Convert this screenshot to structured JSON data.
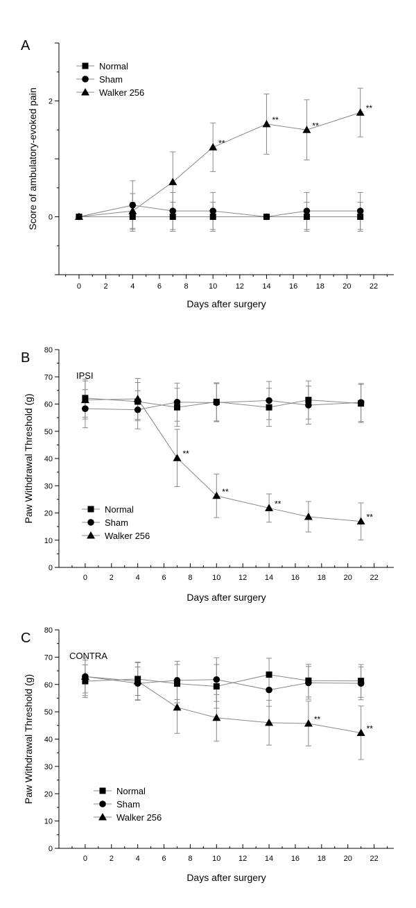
{
  "chart_data": [
    {
      "type": "line",
      "panel_label": "A",
      "title": "",
      "xlabel": "Days after surgery",
      "ylabel": "Score of ambulatory-evoked pain",
      "xlim": [
        -1.5,
        23.5
      ],
      "ylim": [
        -1,
        3
      ],
      "x_ticks": [
        0,
        2,
        4,
        6,
        8,
        10,
        12,
        14,
        16,
        18,
        20,
        22
      ],
      "x_tick_labels": [
        "0",
        "2",
        "4",
        "6",
        "8",
        "10",
        "12",
        "14",
        "16",
        "18",
        "20",
        "22"
      ],
      "y_ticks": [
        0,
        2
      ],
      "y_tick_labels": [
        "0",
        "2"
      ],
      "grid": false,
      "legend_position": "top-left",
      "annotation_text": "",
      "series": [
        {
          "name": "Normal",
          "marker": "square",
          "x": [
            0,
            4,
            7,
            10,
            14,
            17,
            21
          ],
          "y": [
            0,
            0,
            0,
            0,
            0,
            0,
            0
          ],
          "err": [
            0,
            0.25,
            0.25,
            0.25,
            0,
            0.25,
            0.25
          ],
          "sig": [
            "",
            "",
            "",
            "",
            "",
            "",
            ""
          ]
        },
        {
          "name": "Sham",
          "marker": "circle",
          "x": [
            0,
            4,
            7,
            10,
            14,
            17,
            21
          ],
          "y": [
            0,
            0.2,
            0.1,
            0.1,
            0,
            0.1,
            0.1
          ],
          "err": [
            0,
            0.42,
            0.32,
            0.32,
            0,
            0.32,
            0.32
          ],
          "sig": [
            "",
            "",
            "",
            "",
            "",
            "",
            ""
          ]
        },
        {
          "name": "Walker 256",
          "marker": "triangle",
          "x": [
            0,
            4,
            7,
            10,
            14,
            17,
            21
          ],
          "y": [
            0,
            0.1,
            0.6,
            1.2,
            1.6,
            1.5,
            1.8
          ],
          "err": [
            0,
            0.3,
            0.52,
            0.42,
            0.52,
            0.52,
            0.42
          ],
          "sig": [
            "",
            "",
            "",
            "**",
            "**",
            "**",
            "**"
          ]
        }
      ]
    },
    {
      "type": "line",
      "panel_label": "B",
      "title": "",
      "xlabel": "Days after surgery",
      "ylabel": "Paw Withdrawal Threshold (g)",
      "xlim": [
        -2,
        23.5
      ],
      "ylim": [
        0,
        80
      ],
      "x_ticks": [
        0,
        2,
        4,
        6,
        8,
        10,
        12,
        14,
        16,
        18,
        20,
        22
      ],
      "x_tick_labels": [
        "0",
        "2",
        "4",
        "6",
        "8",
        "10",
        "12",
        "14",
        "16",
        "18",
        "20",
        "22"
      ],
      "y_ticks": [
        0,
        10,
        20,
        30,
        40,
        50,
        60,
        70,
        80
      ],
      "y_tick_labels": [
        "0",
        "10",
        "20",
        "30",
        "40",
        "50",
        "60",
        "70",
        "80"
      ],
      "grid": false,
      "legend_position": "bottom-left",
      "annotation_text": "IPSI",
      "series": [
        {
          "name": "Normal",
          "marker": "square",
          "x": [
            0,
            4,
            7,
            10,
            14,
            17,
            21
          ],
          "y": [
            62.2,
            60.9,
            58.8,
            60.8,
            58.8,
            61.5,
            60.2
          ],
          "err": [
            7,
            7,
            7,
            7,
            7,
            7,
            7
          ],
          "sig": [
            "",
            "",
            "",
            "",
            "",
            "",
            ""
          ]
        },
        {
          "name": "Sham",
          "marker": "circle",
          "x": [
            0,
            4,
            7,
            10,
            14,
            17,
            21
          ],
          "y": [
            58.3,
            57.9,
            60.7,
            60.5,
            61.3,
            59.6,
            60.6
          ],
          "err": [
            7,
            7,
            7,
            7,
            7,
            7,
            7
          ],
          "sig": [
            "",
            "",
            "",
            "",
            "",
            "",
            ""
          ]
        },
        {
          "name": "Walker 256",
          "marker": "triangle",
          "x": [
            0,
            4,
            7,
            10,
            14,
            17,
            21
          ],
          "y": [
            61.5,
            61.9,
            40.2,
            26.3,
            21.8,
            18.6,
            16.9
          ],
          "err": [
            7,
            7.5,
            10.5,
            8,
            5.2,
            5.6,
            6.8
          ],
          "sig": [
            "",
            "",
            "**",
            "**",
            "**",
            "",
            "**"
          ]
        }
      ]
    },
    {
      "type": "line",
      "panel_label": "C",
      "title": "",
      "xlabel": "Days after surgery",
      "ylabel": "Paw Withdrawal Threshold (g)",
      "xlim": [
        -2,
        23.5
      ],
      "ylim": [
        0,
        80
      ],
      "x_ticks": [
        0,
        2,
        4,
        6,
        8,
        10,
        12,
        14,
        16,
        18,
        20,
        22
      ],
      "x_tick_labels": [
        "0",
        "2",
        "4",
        "6",
        "8",
        "10",
        "12",
        "14",
        "16",
        "18",
        "20",
        "22"
      ],
      "y_ticks": [
        0,
        10,
        20,
        30,
        40,
        50,
        60,
        70,
        80
      ],
      "y_tick_labels": [
        "0",
        "10",
        "20",
        "30",
        "40",
        "50",
        "60",
        "70",
        "80"
      ],
      "grid": false,
      "legend_position": "bottom-left",
      "annotation_text": "CONTRA",
      "series": [
        {
          "name": "Normal",
          "marker": "square",
          "x": [
            0,
            4,
            7,
            10,
            14,
            17,
            21
          ],
          "y": [
            61.2,
            62,
            60.3,
            59.3,
            63.6,
            61.4,
            61.3
          ],
          "err": [
            6,
            6,
            7,
            8,
            6,
            6,
            6
          ],
          "sig": [
            "",
            "",
            "",
            "",
            "",
            "",
            ""
          ]
        },
        {
          "name": "Sham",
          "marker": "circle",
          "x": [
            0,
            4,
            7,
            10,
            14,
            17,
            21
          ],
          "y": [
            62.9,
            60.4,
            61.5,
            61.8,
            58,
            60.6,
            60.4
          ],
          "err": [
            6,
            6,
            7,
            8,
            6,
            6,
            6
          ],
          "sig": [
            "",
            "",
            "",
            "",
            "",
            "",
            ""
          ]
        },
        {
          "name": "Walker 256",
          "marker": "triangle",
          "x": [
            0,
            4,
            7,
            10,
            14,
            17,
            21
          ],
          "y": [
            62.9,
            61.2,
            51.6,
            47.8,
            46,
            45.7,
            42.3
          ],
          "err": [
            7,
            7,
            9.5,
            8.5,
            8.2,
            8.2,
            9.8
          ],
          "sig": [
            "",
            "",
            "",
            "",
            "",
            "**",
            "**"
          ]
        }
      ]
    }
  ]
}
